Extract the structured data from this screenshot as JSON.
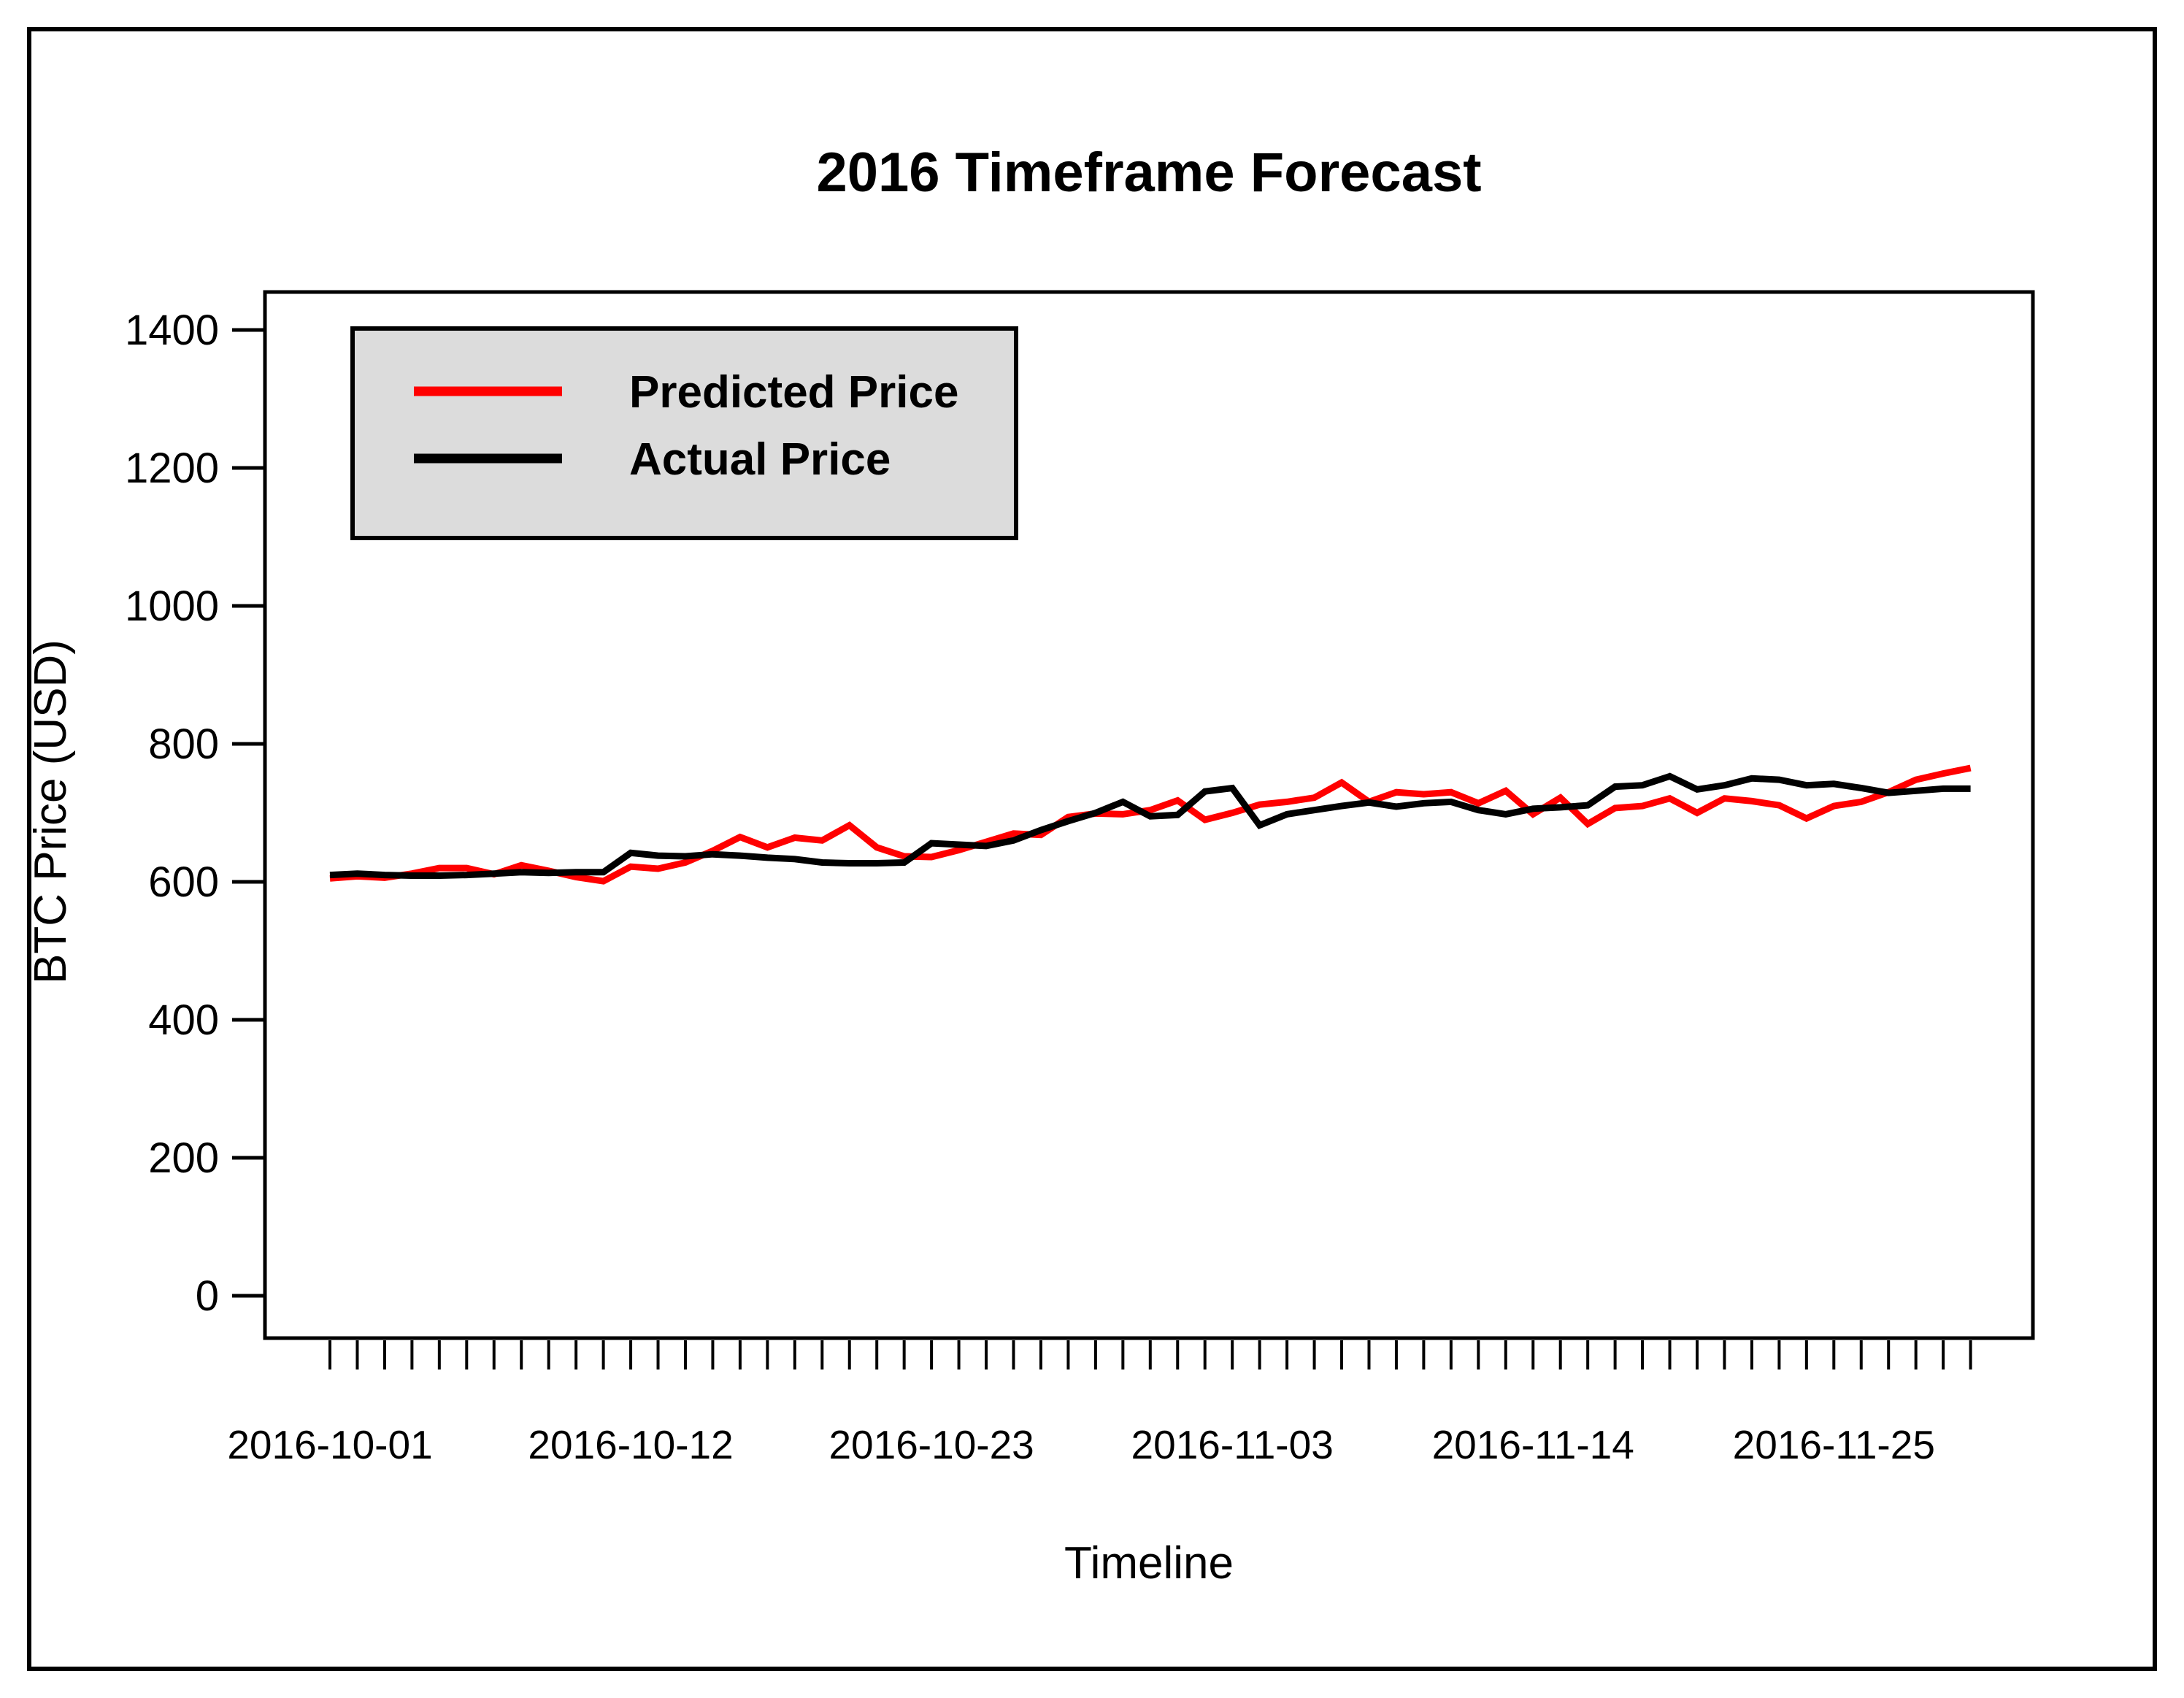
{
  "title": "2016 Timeframe Forecast",
  "colors": {
    "predicted": "#ff0000",
    "actual": "#000000",
    "legend_fill": "#dcdcdc",
    "border": "#000000",
    "background": "#ffffff"
  },
  "legend": {
    "items": [
      {
        "label": "Predicted Price",
        "color": "#ff0000"
      },
      {
        "label": "Actual Price",
        "color": "#000000"
      }
    ]
  },
  "chart_data": {
    "type": "line",
    "title": "2016 Timeframe Forecast",
    "xlabel": "Timeline",
    "ylabel": "BTC Price (USD)",
    "ylim": [
      0,
      1455
    ],
    "y_ticks": [
      0,
      200,
      400,
      600,
      800,
      1000,
      1200,
      1400
    ],
    "x_tick_labels": [
      "2016-10-01",
      "2016-10-12",
      "2016-10-23",
      "2016-11-03",
      "2016-11-14",
      "2016-11-25"
    ],
    "x_tick_label_days": [
      0,
      11,
      22,
      33,
      44,
      55
    ],
    "grid": false,
    "legend_position": "upper left",
    "x": [
      "2016-10-01",
      "2016-10-02",
      "2016-10-03",
      "2016-10-04",
      "2016-10-05",
      "2016-10-06",
      "2016-10-07",
      "2016-10-08",
      "2016-10-09",
      "2016-10-10",
      "2016-10-11",
      "2016-10-12",
      "2016-10-13",
      "2016-10-14",
      "2016-10-15",
      "2016-10-16",
      "2016-10-17",
      "2016-10-18",
      "2016-10-19",
      "2016-10-20",
      "2016-10-21",
      "2016-10-22",
      "2016-10-23",
      "2016-10-24",
      "2016-10-25",
      "2016-10-26",
      "2016-10-27",
      "2016-10-28",
      "2016-10-29",
      "2016-10-30",
      "2016-10-31",
      "2016-11-01",
      "2016-11-02",
      "2016-11-03",
      "2016-11-04",
      "2016-11-05",
      "2016-11-06",
      "2016-11-07",
      "2016-11-08",
      "2016-11-09",
      "2016-11-10",
      "2016-11-11",
      "2016-11-12",
      "2016-11-13",
      "2016-11-14",
      "2016-11-15",
      "2016-11-16",
      "2016-11-17",
      "2016-11-18",
      "2016-11-19",
      "2016-11-20",
      "2016-11-21",
      "2016-11-22",
      "2016-11-23",
      "2016-11-24",
      "2016-11-25",
      "2016-11-26",
      "2016-11-27",
      "2016-11-28",
      "2016-11-29",
      "2016-11-30"
    ],
    "series": [
      {
        "name": "Predicted Price",
        "color": "#ff0000",
        "values": [
          605,
          608,
          606,
          612,
          620,
          620,
          611,
          624,
          616,
          607,
          601,
          622,
          619,
          628,
          645,
          665,
          650,
          664,
          660,
          682,
          650,
          637,
          636,
          646,
          658,
          670,
          668,
          694,
          699,
          698,
          704,
          718,
          690,
          700,
          712,
          716,
          722,
          744,
          716,
          730,
          727,
          730,
          714,
          732,
          698,
          722,
          684,
          707,
          710,
          721,
          700,
          721,
          717,
          711,
          692,
          710,
          716,
          730,
          748,
          757,
          765
        ]
      },
      {
        "name": "Actual Price",
        "color": "#000000",
        "values": [
          610,
          612,
          610,
          609,
          609,
          610,
          612,
          614,
          613,
          614,
          614,
          642,
          638,
          637,
          640,
          638,
          635,
          633,
          628,
          627,
          627,
          628,
          656,
          654,
          652,
          660,
          675,
          688,
          700,
          716,
          695,
          697,
          731,
          736,
          682,
          698,
          704,
          710,
          715,
          709,
          714,
          716,
          704,
          698,
          706,
          708,
          711,
          738,
          740,
          753,
          734,
          740,
          750,
          748,
          740,
          742,
          736,
          729,
          732,
          735,
          735
        ]
      }
    ]
  }
}
